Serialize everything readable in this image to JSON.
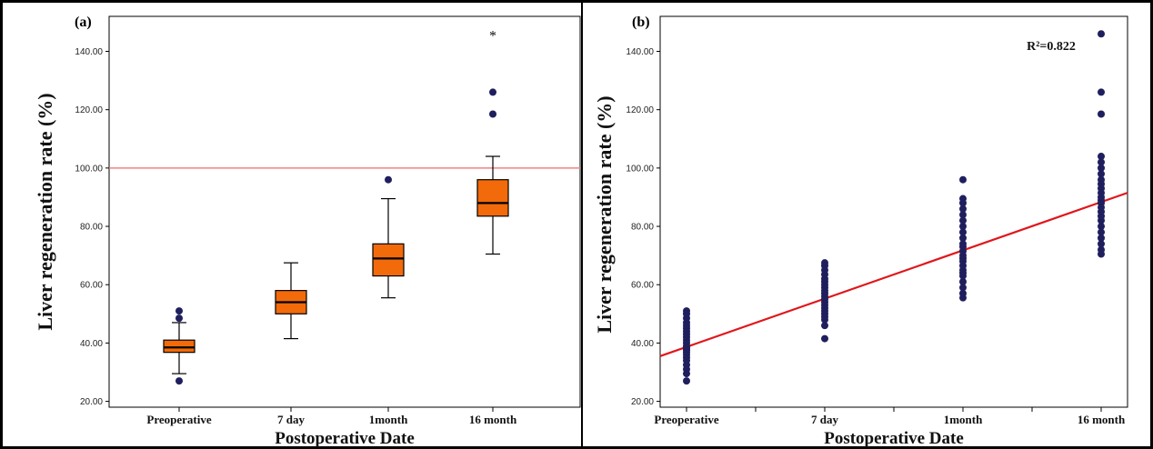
{
  "chart_data": [
    {
      "type": "box",
      "panel_label": "(a)",
      "title": "",
      "xlabel": "Postoperative Date",
      "ylabel": "Liver regeneration rate (%)",
      "ylim": [
        18,
        152
      ],
      "yticks": [
        "20.00",
        "40.00",
        "60.00",
        "80.00",
        "100.00",
        "120.00",
        "140.00"
      ],
      "categories": [
        "Preoperative",
        "7 day",
        "1month",
        "16 month"
      ],
      "box_color": "#f26a0a",
      "reference_line": {
        "y": 100,
        "color": "#f08080"
      },
      "boxes": [
        {
          "category": "Preoperative",
          "whisker_low": 29.5,
          "q1": 36.8,
          "median": 38.5,
          "q3": 41.0,
          "whisker_high": 47.0,
          "outliers": [
            27.0,
            48.5,
            51.0
          ],
          "extremes": []
        },
        {
          "category": "7 day",
          "whisker_low": 41.5,
          "q1": 50.0,
          "median": 54.0,
          "q3": 58.0,
          "whisker_high": 67.5,
          "outliers": [],
          "extremes": []
        },
        {
          "category": "1month",
          "whisker_low": 55.5,
          "q1": 63.0,
          "median": 69.0,
          "q3": 74.0,
          "whisker_high": 89.5,
          "outliers": [
            96.0
          ],
          "extremes": []
        },
        {
          "category": "16 month",
          "whisker_low": 70.5,
          "q1": 83.5,
          "median": 88.0,
          "q3": 96.0,
          "whisker_high": 104.0,
          "outliers": [
            118.5,
            126.0
          ],
          "extremes": [
            146.0
          ]
        }
      ]
    },
    {
      "type": "scatter",
      "panel_label": "(b)",
      "title": "",
      "xlabel": "Postoperative Date",
      "ylabel": "Liver regeneration rate (%)",
      "ylim": [
        18,
        152
      ],
      "yticks": [
        "20.00",
        "40.00",
        "60.00",
        "80.00",
        "100.00",
        "120.00",
        "140.00"
      ],
      "categories": [
        "Preoperative",
        "7 day",
        "1month",
        "16 month"
      ],
      "point_color": "#1f1f5e",
      "annotation": "R²=0.822",
      "fit_line": {
        "color": "#e0161b",
        "y_start": 35.5,
        "y_end": 91.5
      },
      "points": [
        {
          "category": "Preoperative",
          "values": [
            27.0,
            29.5,
            31.0,
            32.5,
            34.0,
            35.0,
            36.0,
            36.8,
            37.5,
            38.0,
            38.5,
            39.0,
            40.0,
            41.0,
            42.0,
            43.0,
            44.0,
            45.0,
            46.0,
            47.0,
            48.5,
            50.0,
            51.0
          ]
        },
        {
          "category": "7 day",
          "values": [
            41.5,
            46.0,
            48.0,
            49.0,
            50.0,
            51.0,
            52.0,
            53.0,
            54.0,
            55.0,
            56.0,
            57.0,
            58.0,
            59.0,
            60.0,
            61.0,
            62.0,
            63.5,
            65.0,
            66.5,
            67.5
          ]
        },
        {
          "category": "1month",
          "values": [
            55.5,
            57.0,
            59.0,
            61.0,
            63.0,
            64.0,
            65.0,
            66.5,
            68.0,
            69.0,
            70.0,
            71.5,
            73.0,
            74.0,
            76.0,
            78.0,
            80.0,
            82.0,
            84.0,
            86.0,
            88.0,
            89.5,
            96.0
          ]
        },
        {
          "category": "16 month",
          "values": [
            70.5,
            72.0,
            74.0,
            76.0,
            78.0,
            80.0,
            82.0,
            83.5,
            85.0,
            86.5,
            88.0,
            89.0,
            90.0,
            91.5,
            93.0,
            94.5,
            96.0,
            98.0,
            100.0,
            102.0,
            104.0,
            118.5,
            126.0,
            146.0
          ]
        }
      ]
    }
  ]
}
